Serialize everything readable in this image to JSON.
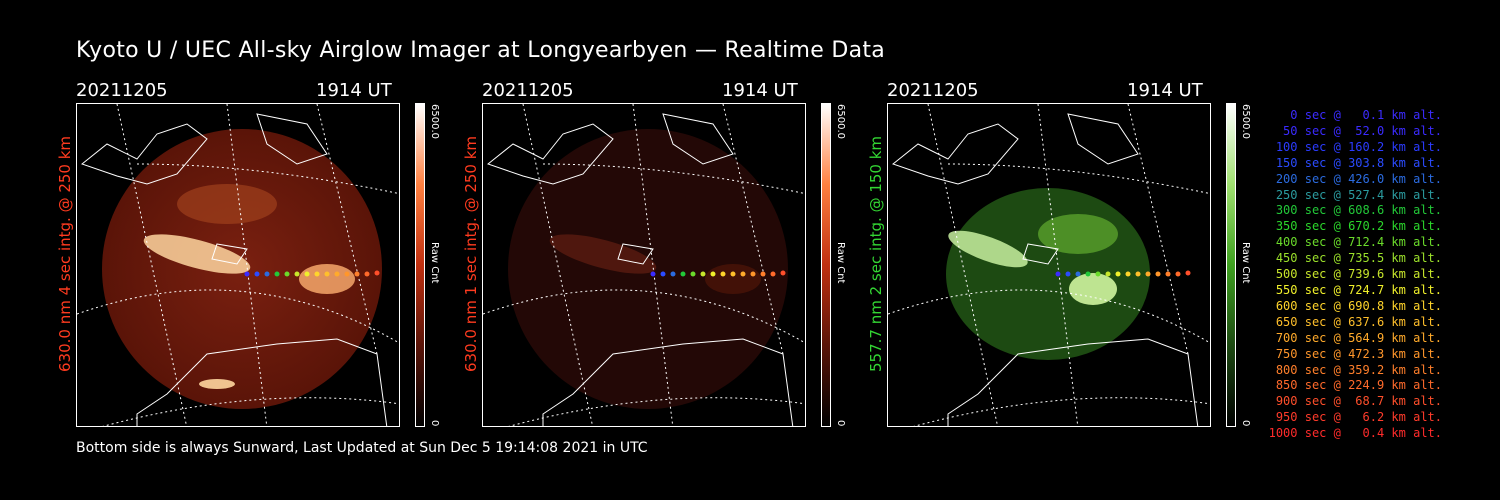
{
  "title": "Kyoto U / UEC All-sky Airglow Imager at Longyearbyen — Realtime Data",
  "footer": "Bottom side is always Sunward, Last Updated at Sun Dec  5 19:14:08 2021 in UTC",
  "panels": [
    {
      "date": "20211205",
      "time": "1914 UT",
      "side_label": "630.0 nm 4 sec intg. @ 250 km",
      "label_color": "#ff3b1f",
      "cb_max": "6500.0",
      "cb_mid": "Raw Cnt",
      "cb_min": "0",
      "image_color": "red-bright"
    },
    {
      "date": "20211205",
      "time": "1914 UT",
      "side_label": "630.0 nm 1 sec intg. @ 250 km",
      "label_color": "#ff3b1f",
      "cb_max": "6500.0",
      "cb_mid": "Raw Cnt",
      "cb_min": "0",
      "image_color": "red-dim"
    },
    {
      "date": "20211205",
      "time": "1914 UT",
      "side_label": "557.7 nm 2 sec intg. @ 150 km",
      "label_color": "#33d633",
      "cb_max": "6500.0",
      "cb_mid": "Raw Cnt",
      "cb_min": "0",
      "image_color": "green"
    }
  ],
  "legend": [
    {
      "text": "0 sec @   0.1 km alt.",
      "color": "#3b2bff"
    },
    {
      "text": "50 sec @  52.0 km alt.",
      "color": "#3b2bff"
    },
    {
      "text": "100 sec @ 160.2 km alt.",
      "color": "#2b3bff"
    },
    {
      "text": "150 sec @ 303.8 km alt.",
      "color": "#2b4bff"
    },
    {
      "text": "200 sec @ 426.0 km alt.",
      "color": "#2b6bdf"
    },
    {
      "text": "250 sec @ 527.4 km alt.",
      "color": "#2b9b9f"
    },
    {
      "text": "300 sec @ 608.6 km alt.",
      "color": "#22c838"
    },
    {
      "text": "350 sec @ 670.2 km alt.",
      "color": "#2bd62b"
    },
    {
      "text": "400 sec @ 712.4 km alt.",
      "color": "#6bdb2b"
    },
    {
      "text": "450 sec @ 735.5 km alt.",
      "color": "#9be02b"
    },
    {
      "text": "500 sec @ 739.6 km alt.",
      "color": "#c8e62b"
    },
    {
      "text": "550 sec @ 724.7 km alt.",
      "color": "#f0f02b"
    },
    {
      "text": "600 sec @ 690.8 km alt.",
      "color": "#ffd42b"
    },
    {
      "text": "650 sec @ 637.6 km alt.",
      "color": "#ffbf2b"
    },
    {
      "text": "700 sec @ 564.9 km alt.",
      "color": "#ffaa2b"
    },
    {
      "text": "750 sec @ 472.3 km alt.",
      "color": "#ff962b"
    },
    {
      "text": "800 sec @ 359.2 km alt.",
      "color": "#ff7f2b"
    },
    {
      "text": "850 sec @ 224.9 km alt.",
      "color": "#ff6a2b"
    },
    {
      "text": "900 sec @  68.7 km alt.",
      "color": "#ff4f2b"
    },
    {
      "text": "950 sec @   6.2 km alt.",
      "color": "#ff3b2b"
    },
    {
      "text": "1000 sec @   0.4 km alt.",
      "color": "#ff2b2b"
    }
  ]
}
